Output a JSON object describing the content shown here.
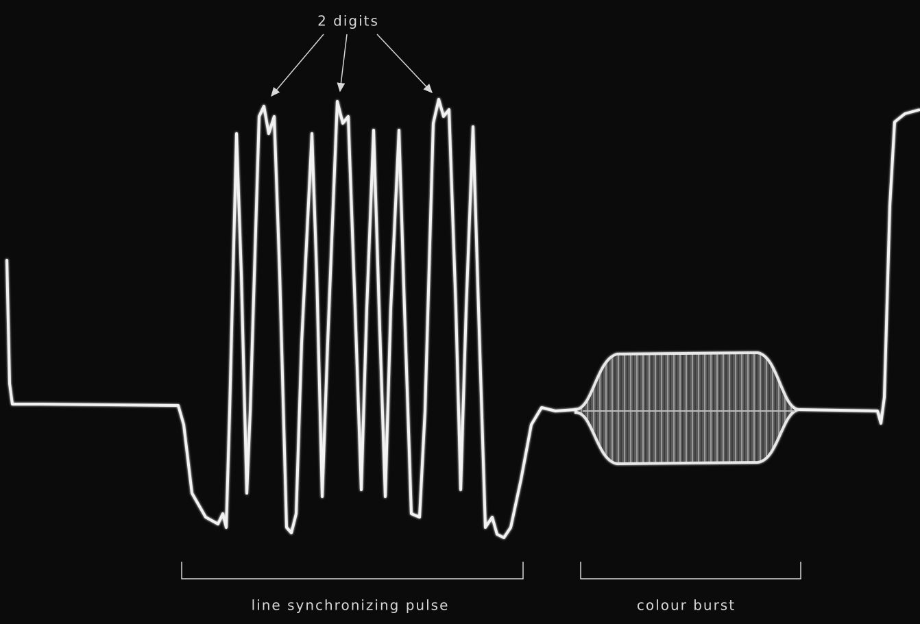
{
  "annotations": {
    "digits": "2 digits",
    "sync": "line synchronizing pulse",
    "burst": "colour burst"
  }
}
